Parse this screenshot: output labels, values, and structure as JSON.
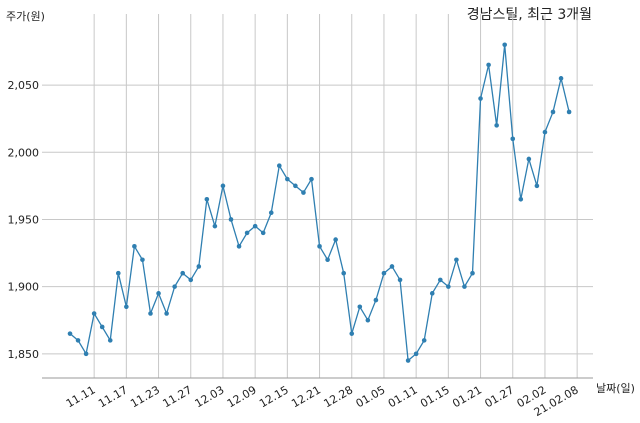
{
  "chart_data": {
    "type": "line",
    "title": "경남스틸, 최근 3개월",
    "xlabel": "날짜(일)",
    "ylabel": "주가(원)",
    "ylim": [
      1832,
      2088
    ],
    "yticks": [
      1850,
      1900,
      1950,
      2000,
      2050
    ],
    "ytick_labels": [
      "1,850",
      "1,900",
      "1,950",
      "2,000",
      "2,050"
    ],
    "xtick_labels": [
      "11.11",
      "11.17",
      "11.23",
      "11.27",
      "12.03",
      "12.09",
      "12.15",
      "12.21",
      "12.28",
      "01.05",
      "01.11",
      "01.15",
      "01.21",
      "01.27",
      "02.02",
      "21.02.08"
    ],
    "xtick_index": [
      3,
      7,
      11,
      15,
      19,
      23,
      27,
      31,
      35,
      39,
      43,
      47,
      51,
      55,
      59,
      63
    ],
    "grid": true,
    "color": "#2f7fb1",
    "values": [
      1865,
      1860,
      1850,
      1880,
      1870,
      1860,
      1910,
      1885,
      1930,
      1920,
      1880,
      1895,
      1880,
      1900,
      1910,
      1905,
      1915,
      1965,
      1945,
      1975,
      1950,
      1930,
      1940,
      1945,
      1940,
      1955,
      1990,
      1980,
      1975,
      1970,
      1980,
      1930,
      1920,
      1935,
      1910,
      1865,
      1885,
      1875,
      1890,
      1910,
      1915,
      1905,
      1845,
      1850,
      1860,
      1895,
      1905,
      1900,
      1920,
      1900,
      1910,
      2040,
      2065,
      2020,
      2080,
      2010,
      1965,
      1995,
      1975,
      2015,
      2030,
      2055,
      2030
    ]
  }
}
